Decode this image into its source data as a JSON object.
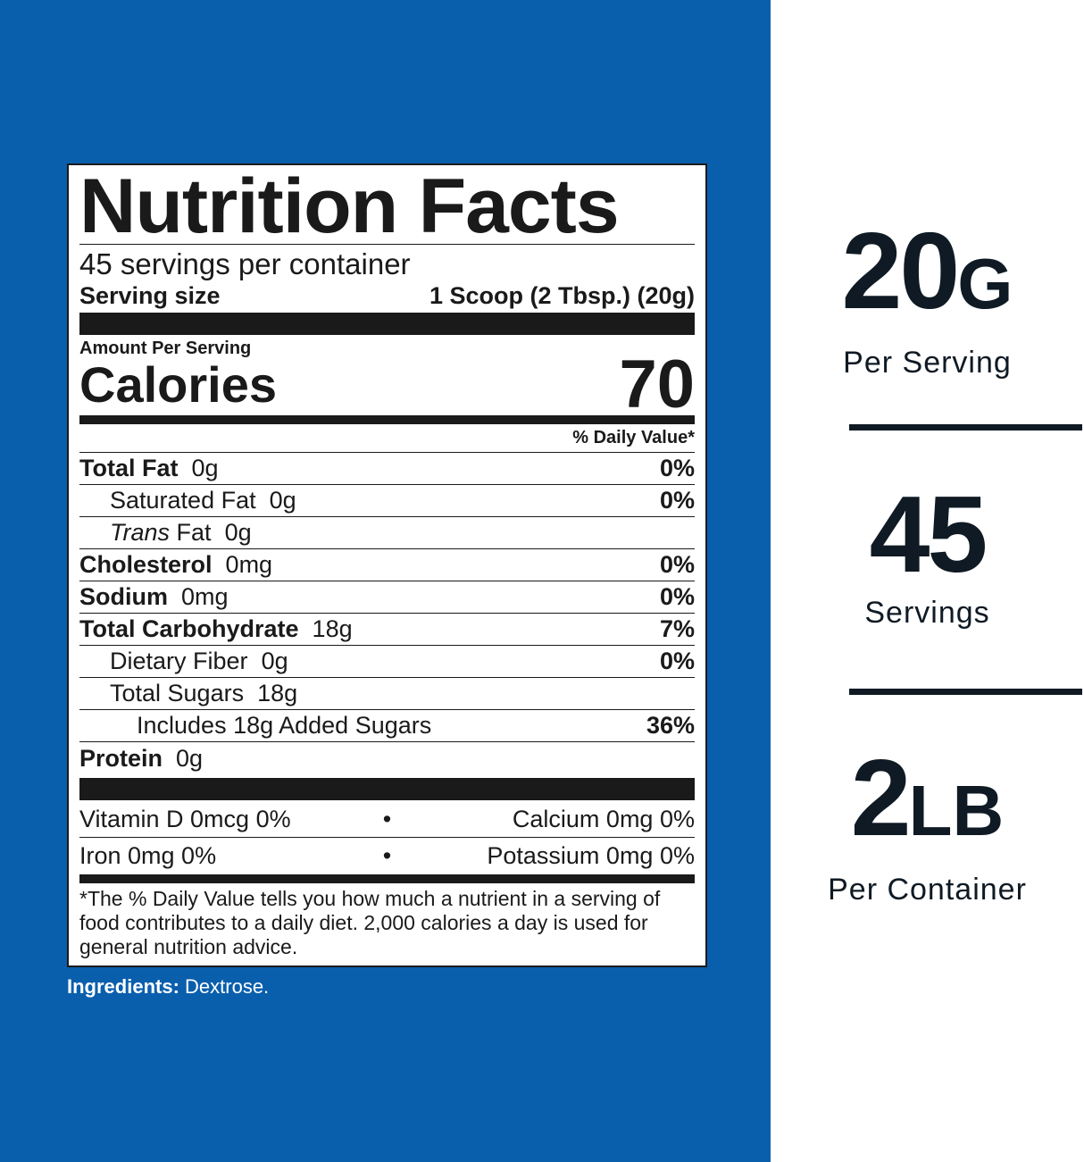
{
  "colors": {
    "background_blue": "#0a5fad",
    "stat_text": "#0f1a24"
  },
  "label": {
    "title": "Nutrition Facts",
    "servings_per_container": "45 servings per container",
    "serving_size_label": "Serving size",
    "serving_size_value": "1 Scoop (2 Tbsp.) (20g)",
    "amount_per_serving": "Amount Per Serving",
    "calories_label": "Calories",
    "calories_value": "70",
    "daily_value_header": "% Daily Value*",
    "nutrients": [
      {
        "name": "Total Fat",
        "amount": "0g",
        "dv": "0%"
      },
      {
        "name": "Saturated Fat",
        "amount": "0g",
        "dv": "0%"
      },
      {
        "name_italic": "Trans",
        "name": "Fat",
        "amount": "0g",
        "dv": ""
      },
      {
        "name": "Cholesterol",
        "amount": "0mg",
        "dv": "0%"
      },
      {
        "name": "Sodium",
        "amount": "0mg",
        "dv": "0%"
      },
      {
        "name": "Total Carbohydrate",
        "amount": "18g",
        "dv": "7%"
      },
      {
        "name": "Dietary Fiber",
        "amount": "0g",
        "dv": "0%"
      },
      {
        "name": "Total Sugars",
        "amount": "18g",
        "dv": ""
      },
      {
        "name": "Includes 18g Added Sugars",
        "amount": "",
        "dv": "36%"
      },
      {
        "name": "Protein",
        "amount": "0g",
        "dv": ""
      }
    ],
    "vitamins": [
      {
        "left": "Vitamin D  0mcg  0%",
        "right": "Calcium  0mg  0%"
      },
      {
        "left": "Iron  0mg  0%",
        "right": "Potassium  0mg  0%"
      }
    ],
    "bullet": "•",
    "footnote": "*The % Daily Value tells you how much a nutrient in a serving of food contributes to a daily diet. 2,000 calories a day is used for general nutrition advice."
  },
  "ingredients": {
    "label": "Ingredients:",
    "value": " Dextrose."
  },
  "stats": [
    {
      "number": "20",
      "unit": "G",
      "caption": "Per Serving"
    },
    {
      "number": "45",
      "unit": "",
      "caption": "Servings"
    },
    {
      "number": "2",
      "unit": "LB",
      "caption": "Per Container"
    }
  ]
}
